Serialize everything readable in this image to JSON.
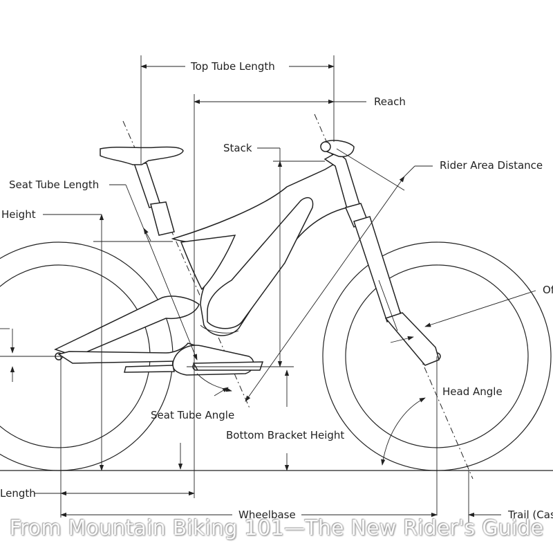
{
  "labels": {
    "top_tube_length": "Top Tube Length",
    "reach": "Reach",
    "stack": "Stack",
    "rider_area_distance": "Rider Area Distance",
    "seat_tube_length": "Seat Tube Length",
    "height": "Height",
    "offset": "Of",
    "head_angle": "Head Angle",
    "seat_tube_angle": "Seat Tube Angle",
    "bottom_bracket_height": "Bottom Bracket Height",
    "chainstay_length": "Length",
    "wheelbase": "Wheelbase",
    "trail": "Trail (Cas"
  },
  "watermark": "From Mountain Biking 101—The New Rider's Guide"
}
